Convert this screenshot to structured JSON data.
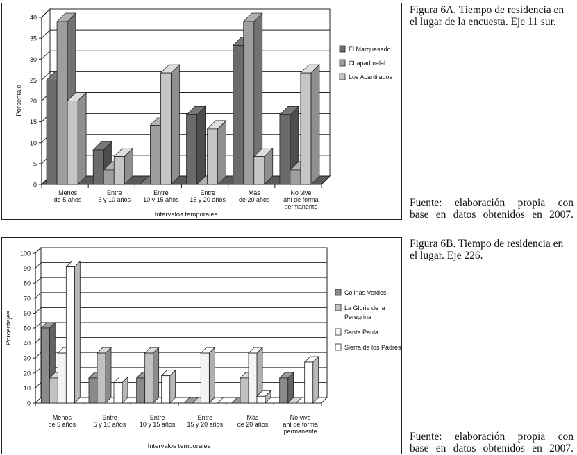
{
  "figure_a": {
    "caption": "Figura 6A. Tiempo de residencia en el lugar de la encuesta. Eje 11 sur.",
    "source_line1": "Fuente: elaboración propia con",
    "source_line2": "base en datos obtenidos en 2007."
  },
  "figure_b": {
    "caption": "Figura 6B. Tiempo de residencia en el lugar. Eje 226.",
    "source_line1": "Fuente: elaboración propia con",
    "source_line2": "base en datos obtenidos en 2007."
  },
  "chart_data": [
    {
      "type": "bar",
      "id": "chart_a",
      "categories": [
        [
          "Menos",
          "de 5 años"
        ],
        [
          "Entre",
          "5 y 10 años"
        ],
        [
          "Entre",
          "10 y 15 años"
        ],
        [
          "Entre",
          "15 y 20 años"
        ],
        [
          "Más",
          "de 20 años"
        ],
        [
          "No vive",
          "ahí de forma",
          "permanente"
        ]
      ],
      "series": [
        {
          "name": "El Marquesado",
          "color": "#6b6b6b",
          "values": [
            25,
            8.3,
            0,
            16.7,
            33.3,
            16.7
          ]
        },
        {
          "name": "Chapadmalal",
          "color": "#9e9e9e",
          "values": [
            39,
            3.5,
            14.2,
            0,
            39,
            3.5
          ]
        },
        {
          "name": "Los Acantilados",
          "color": "#c6c6c6",
          "values": [
            20,
            6.7,
            26.7,
            13.3,
            6.7,
            26.7
          ]
        }
      ],
      "xlabel": "Intervalos temporales",
      "ylabel": "Porcentaje",
      "ylim": [
        0,
        40
      ],
      "yticks": [
        0,
        5,
        10,
        15,
        20,
        25,
        30,
        35,
        40
      ],
      "grid": true,
      "legend": "right"
    },
    {
      "type": "bar",
      "id": "chart_b",
      "categories": [
        [
          "Menos",
          "de 5 años"
        ],
        [
          "Entre",
          "5 y 10 años"
        ],
        [
          "Entre",
          "10 y 15 años"
        ],
        [
          "Entre",
          "15 y 20 años"
        ],
        [
          "Más",
          "de 20 años"
        ],
        [
          "No vive",
          "ahí de forma",
          "permanente"
        ]
      ],
      "series": [
        {
          "name": "Colinas Verdes",
          "color": "#8a8a8a",
          "values": [
            50,
            16.7,
            16.7,
            0,
            0,
            16.7
          ]
        },
        {
          "name": "La Gloria de la Peregrina",
          "legend_lines": [
            "La Gloria de la",
            "Peregrina"
          ],
          "color": "#c2c2c2",
          "values": [
            16.7,
            33.3,
            33.3,
            0,
            16.7,
            0
          ]
        },
        {
          "name": "Santa Paula",
          "color": "#f4f4f4",
          "values": [
            33.3,
            0,
            0,
            33.3,
            33.3,
            0
          ]
        },
        {
          "name": "Sierra de los Padres",
          "color": "#ffffff",
          "values": [
            90.9,
            13.6,
            18.2,
            0,
            4.5,
            27.3
          ]
        }
      ],
      "xlabel": "Intervalos temporales",
      "ylabel": "Porcentajes",
      "ylim": [
        0,
        100
      ],
      "yticks": [
        0,
        10,
        20,
        30,
        40,
        50,
        60,
        70,
        80,
        90,
        100
      ],
      "grid": true,
      "legend": "right"
    }
  ]
}
